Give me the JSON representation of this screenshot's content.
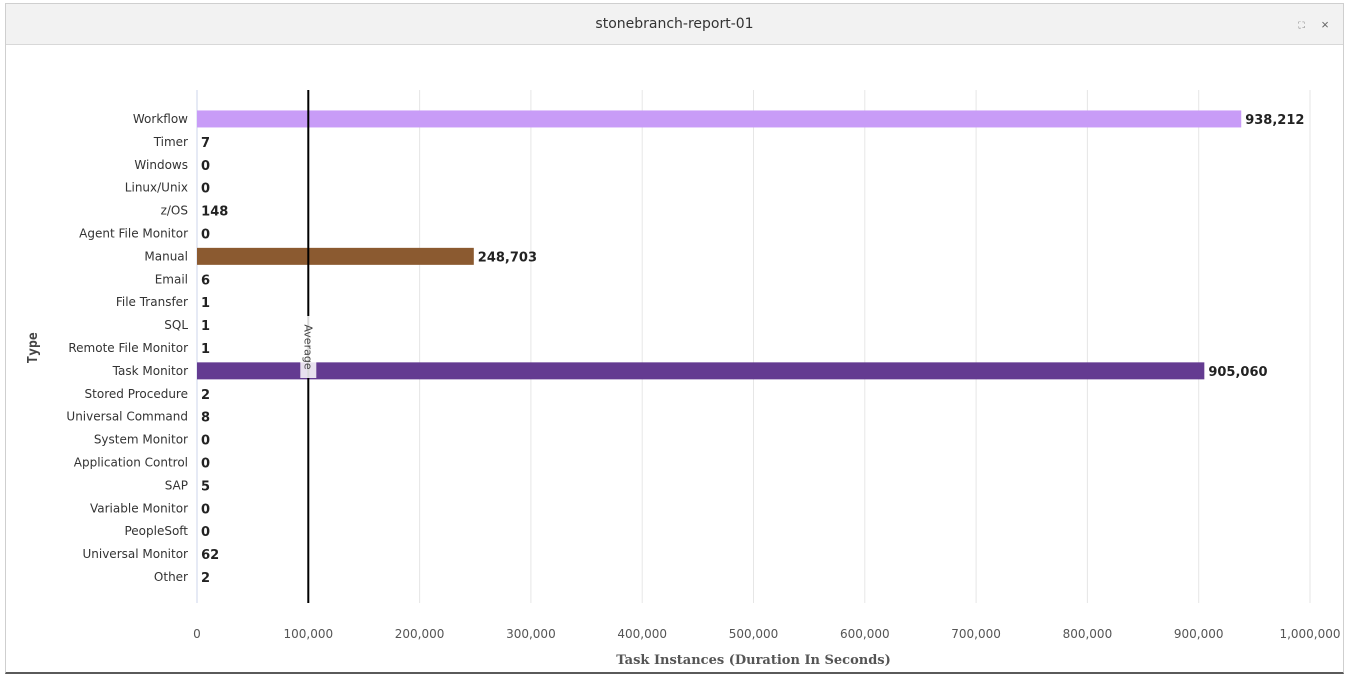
{
  "window": {
    "title": "stonebranch-report-01",
    "expand_icon": "expand-icon",
    "close_icon": "close-icon",
    "expand_glyph": "⛶",
    "close_glyph": "×"
  },
  "chart_data": {
    "type": "bar",
    "orientation": "horizontal",
    "xlabel": "Task Instances (Duration In Seconds)",
    "ylabel": "Type",
    "xlim": [
      0,
      1000000
    ],
    "x_ticks": [
      0,
      100000,
      200000,
      300000,
      400000,
      500000,
      600000,
      700000,
      800000,
      900000,
      1000000
    ],
    "x_tick_labels": [
      "0",
      "100,000",
      "200,000",
      "300,000",
      "400,000",
      "500,000",
      "600,000",
      "700,000",
      "800,000",
      "900,000",
      "1,000,000"
    ],
    "grid": "vertical",
    "categories": [
      "Workflow",
      "Timer",
      "Windows",
      "Linux/Unix",
      "z/OS",
      "Agent File Monitor",
      "Manual",
      "Email",
      "File Transfer",
      "SQL",
      "Remote File Monitor",
      "Task Monitor",
      "Stored Procedure",
      "Universal Command",
      "System Monitor",
      "Application Control",
      "SAP",
      "Variable Monitor",
      "PeopleSoft",
      "Universal Monitor",
      "Other"
    ],
    "values": [
      938212,
      7,
      0,
      0,
      148,
      0,
      248703,
      6,
      1,
      1,
      1,
      905060,
      2,
      8,
      0,
      0,
      5,
      0,
      0,
      62,
      2
    ],
    "value_labels": [
      "938,212",
      "7",
      "0",
      "0",
      "148",
      "0",
      "248,703",
      "6",
      "1",
      "1",
      "1",
      "905,060",
      "2",
      "8",
      "0",
      "0",
      "5",
      "0",
      "0",
      "62",
      "2"
    ],
    "colors": [
      "#c89cf7",
      "#7cb5ec",
      "#434348",
      "#90ed7d",
      "#f7a35c",
      "#8085e9",
      "#8b5a30",
      "#e4d354",
      "#2b908f",
      "#f45b5b",
      "#91e8e1",
      "#643b91",
      "#7cb5ec",
      "#434348",
      "#90ed7d",
      "#f7a35c",
      "#8085e9",
      "#f15c80",
      "#e4d354",
      "#2b908f",
      "#f45b5b"
    ],
    "reference_line": {
      "label": "Average",
      "value": 100000,
      "color": "#000000"
    }
  }
}
